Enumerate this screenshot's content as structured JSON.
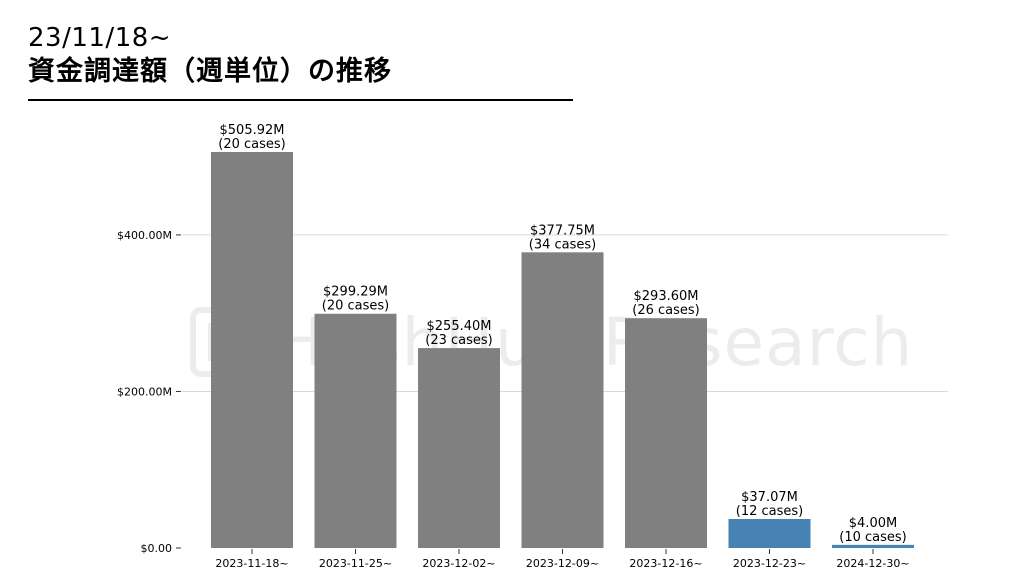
{
  "header": {
    "date_range": "23/11/18~",
    "title": "資金調達額（週単位）の推移"
  },
  "watermark": {
    "text": "HashHub Research"
  },
  "colors": {
    "past_bar": "#808080",
    "current_bar": "#4682B4",
    "grid": "#d9d9d9",
    "text": "#000000"
  },
  "chart_data": {
    "type": "bar",
    "categories": [
      "2023-11-18~",
      "2023-11-25~",
      "2023-12-02~",
      "2023-12-09~",
      "2023-12-16~",
      "2023-12-23~",
      "2024-12-30~"
    ],
    "values": [
      505.92,
      299.29,
      255.4,
      377.75,
      293.6,
      37.07,
      4.0
    ],
    "cases": [
      20,
      20,
      23,
      34,
      26,
      12,
      10
    ],
    "value_labels": [
      "$505.92M",
      "$299.29M",
      "$255.40M",
      "$377.75M",
      "$293.60M",
      "$37.07M",
      "$4.00M"
    ],
    "case_labels": [
      "(20 cases)",
      "(20 cases)",
      "(23 cases)",
      "(34 cases)",
      "(26 cases)",
      "(12 cases)",
      "(10 cases)"
    ],
    "highlight": [
      false,
      false,
      false,
      false,
      false,
      true,
      true
    ],
    "ylim": [
      0,
      505.92
    ],
    "yticks": [
      0,
      200,
      400
    ],
    "ytick_labels": [
      "$0.00",
      "$200.00M",
      "$400.00M"
    ],
    "grid": "horizontal",
    "legend": "none",
    "xlabel": "",
    "ylabel": ""
  }
}
